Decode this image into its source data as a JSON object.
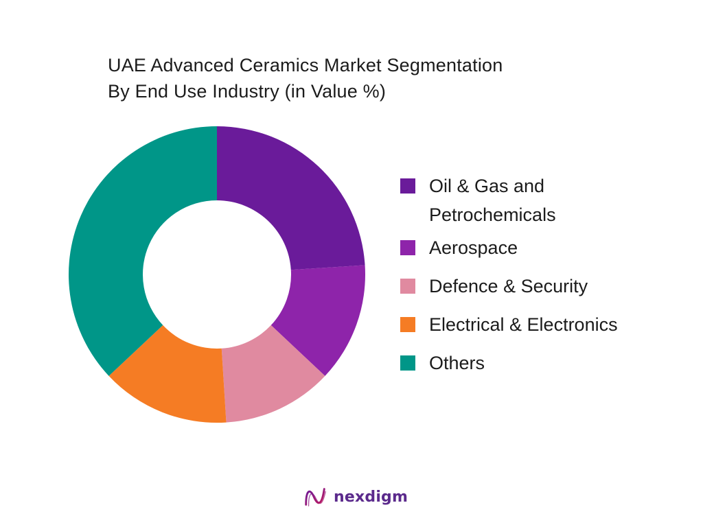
{
  "chart_data": {
    "type": "pie",
    "title": "UAE Advanced Ceramics Market Segmentation By End Use Industry (in Value %)",
    "title_lines": [
      "UAE Advanced Ceramics Market Segmentation",
      "By End Use Industry (in Value %)"
    ],
    "donut": true,
    "legend_position": "right",
    "slices": [
      {
        "label": "Oil & Gas and Petrochemicals",
        "value": 24,
        "color": "#6a1b9a"
      },
      {
        "label": "Aerospace",
        "value": 13,
        "color": "#8e24aa"
      },
      {
        "label": "Defence & Security",
        "value": 12,
        "color": "#e08aa0"
      },
      {
        "label": "Electrical & Electronics",
        "value": 14,
        "color": "#f57c24"
      },
      {
        "label": "Others",
        "value": 37,
        "color": "#009688"
      }
    ]
  },
  "brand": {
    "name": "nexdigm",
    "color": "#5b2a8c"
  }
}
